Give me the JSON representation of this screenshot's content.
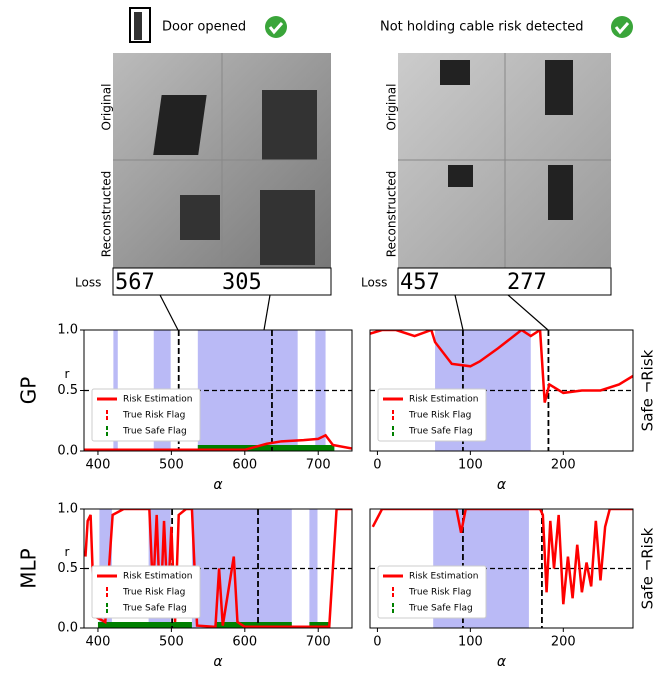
{
  "image_panels": [
    {
      "caption": "Door opened",
      "row_labels": [
        "Original",
        "Reconstructed"
      ],
      "loss_label": "Loss",
      "losses": [
        567,
        305
      ]
    },
    {
      "caption": "Not holding cable risk detected",
      "row_labels": [
        "Original",
        "Reconstructed"
      ],
      "loss_label": "Loss",
      "losses": [
        457,
        277
      ]
    }
  ],
  "chart_data": [
    {
      "type": "line",
      "ylabel": "GP",
      "ylabel_small": "r",
      "xlabel": "α",
      "xlim": [
        381,
        746
      ],
      "xticks": [
        400,
        500,
        600,
        700
      ],
      "ylim": [
        0,
        1
      ],
      "yticks": [
        {
          "value": 0,
          "label": "0.0"
        },
        {
          "value": 0.5,
          "label": "0.5"
        },
        {
          "value": 1,
          "label": "1.0"
        }
      ],
      "threshold": 0.5,
      "markers": [
        510,
        637
      ],
      "legend": "lower left",
      "series": [
        {
          "name": "Risk Estimation",
          "color": "#ff0000",
          "x": [
            381,
            450,
            550,
            600,
            630,
            650,
            680,
            700,
            710,
            720,
            746
          ],
          "values": [
            0.01,
            0.01,
            0.01,
            0.01,
            0.06,
            0.08,
            0.09,
            0.1,
            0.13,
            0.05,
            0.02
          ]
        }
      ],
      "risk_flag": {
        "name": "True Risk Flag",
        "color": "#8c8cf0",
        "intervals": [
          [
            421,
            427
          ],
          [
            476,
            499
          ],
          [
            536,
            672
          ],
          [
            696,
            710
          ]
        ]
      },
      "safe_flag": {
        "name": "True Safe Flag",
        "color": "#008000",
        "intervals": [
          [
            536,
            722
          ]
        ]
      }
    },
    {
      "type": "line",
      "right_label": "Safe ¬Risk",
      "xlabel": "α",
      "xlim": [
        -8,
        275
      ],
      "xticks": [
        0,
        100,
        200
      ],
      "ylim": [
        0,
        1
      ],
      "threshold": 0.5,
      "markers": [
        92,
        184
      ],
      "legend": "lower left",
      "series": [
        {
          "name": "Risk Estimation",
          "color": "#ff0000",
          "x": [
            -8,
            5,
            20,
            40,
            58,
            62,
            80,
            100,
            110,
            130,
            155,
            165,
            175,
            180,
            185,
            200,
            220,
            240,
            260,
            275
          ],
          "values": [
            0.97,
            1,
            1,
            0.95,
            1,
            0.9,
            0.72,
            0.7,
            0.74,
            0.85,
            1,
            0.95,
            1,
            0.4,
            0.55,
            0.48,
            0.5,
            0.5,
            0.55,
            0.62
          ]
        }
      ],
      "risk_flag": {
        "name": "True Risk Flag",
        "color": "#8c8cf0",
        "intervals": [
          [
            62,
            165
          ]
        ]
      },
      "safe_flag": {
        "name": "True Safe Flag",
        "color": "#008000",
        "intervals": []
      }
    },
    {
      "type": "line",
      "ylabel": "MLP",
      "ylabel_small": "r",
      "xlabel": "α",
      "xlim": [
        381,
        746
      ],
      "xticks": [
        400,
        500,
        600,
        700
      ],
      "ylim": [
        0,
        1
      ],
      "yticks": [
        {
          "value": 0,
          "label": "0.0"
        },
        {
          "value": 0.5,
          "label": "0.5"
        },
        {
          "value": 1,
          "label": "1.0"
        }
      ],
      "threshold": 0.5,
      "markers": [
        501,
        618
      ],
      "legend": "lower left",
      "series": [
        {
          "name": "Risk Estimation",
          "color": "#ff0000",
          "x": [
            383,
            386,
            390,
            395,
            410,
            420,
            435,
            470,
            475,
            480,
            485,
            490,
            495,
            500,
            505,
            510,
            520,
            528,
            535,
            560,
            565,
            570,
            585,
            590,
            600,
            715,
            725,
            746
          ],
          "values": [
            0.6,
            0.9,
            0.95,
            0.1,
            0.05,
            0.95,
            1,
            1,
            0.3,
            0.95,
            0.1,
            0.9,
            0.2,
            0.85,
            0.05,
            0.95,
            1,
            1,
            0.02,
            0.01,
            0.5,
            0.02,
            0.6,
            0.05,
            0.01,
            0.01,
            1,
            1
          ]
        }
      ],
      "risk_flag": {
        "name": "True Risk Flag",
        "color": "#8c8cf0",
        "intervals": [
          [
            402,
            419
          ],
          [
            469,
            499
          ],
          [
            528,
            664
          ],
          [
            688,
            699
          ]
        ]
      },
      "safe_flag": {
        "name": "True Safe Flag",
        "color": "#008000",
        "intervals": [
          [
            400,
            528
          ],
          [
            560,
            664
          ],
          [
            688,
            715
          ]
        ]
      }
    },
    {
      "type": "line",
      "right_label": "Safe ¬Risk",
      "xlabel": "α",
      "xlim": [
        -8,
        275
      ],
      "xticks": [
        0,
        100,
        200
      ],
      "ylim": [
        0,
        1
      ],
      "threshold": 0.5,
      "markers": [
        92,
        177
      ],
      "legend": "lower left",
      "series": [
        {
          "name": "Risk Estimation",
          "color": "#ff0000",
          "x": [
            -5,
            5,
            85,
            90,
            95,
            175,
            178,
            182,
            186,
            190,
            195,
            200,
            205,
            210,
            215,
            220,
            225,
            230,
            235,
            240,
            245,
            250,
            275
          ],
          "values": [
            0.85,
            1,
            1,
            0.8,
            1,
            1,
            0.95,
            0.3,
            0.9,
            0.5,
            0.95,
            0.2,
            0.6,
            0.25,
            0.7,
            0.3,
            0.55,
            0.35,
            0.9,
            0.4,
            0.85,
            1,
            1
          ]
        }
      ],
      "risk_flag": {
        "name": "True Risk Flag",
        "color": "#8c8cf0",
        "intervals": [
          [
            60,
            163
          ]
        ]
      },
      "safe_flag": {
        "name": "True Safe Flag",
        "color": "#008000",
        "intervals": []
      }
    }
  ]
}
